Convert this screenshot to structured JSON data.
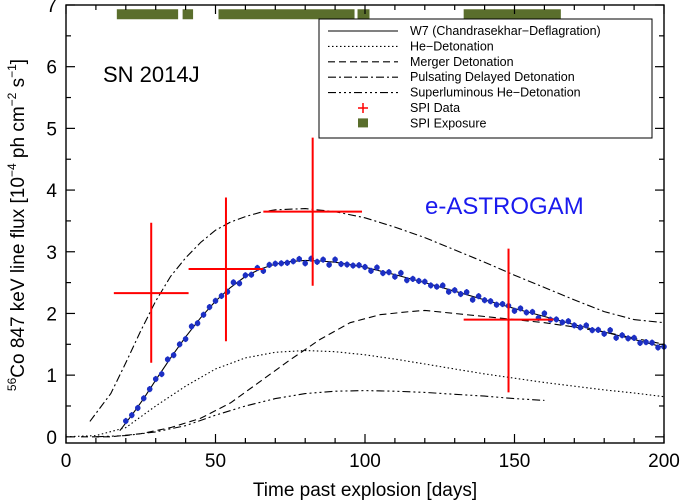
{
  "chart_data": {
    "type": "line",
    "title": "SN 2014J",
    "annotation": "e-ASTROGAM",
    "xlabel": "Time past explosion [days]",
    "ylabel": {
      "prefix": "56",
      "main": "Co  847 keV line flux [10",
      "exp1": "−4",
      "mid": " ph cm",
      "exp2": "−2",
      "mid2": " s",
      "exp3": "−1",
      "end": "]"
    },
    "xlim": [
      0,
      200
    ],
    "ylim": [
      -0.1,
      7
    ],
    "xticks": [
      0,
      50,
      100,
      150,
      200
    ],
    "yticks": [
      0,
      1,
      2,
      3,
      4,
      5,
      6,
      7
    ],
    "grid": false,
    "legend_location": "top-right",
    "legend": [
      {
        "label": "W7 (Chandrasekhar−Deflagration)",
        "style": "solid"
      },
      {
        "label": "He−Detonation",
        "style": "dotted"
      },
      {
        "label": "Merger Detonation",
        "style": "dashed"
      },
      {
        "label": "Pulsating Delayed Detonation",
        "style": "dashdot"
      },
      {
        "label": "Superluminous He−Detonation",
        "style": "dashdotdotdot"
      },
      {
        "label": "SPI Data",
        "style": "plus"
      },
      {
        "label": "SPI Exposure",
        "style": "square"
      }
    ],
    "series": [
      {
        "name": "W7 (Chandrasekhar−Deflagration)",
        "style": "solid",
        "x": [
          18,
          22,
          26,
          30,
          35,
          40,
          45,
          50,
          55,
          60,
          65,
          70,
          75,
          80,
          85,
          90,
          100,
          110,
          120,
          130,
          140,
          150,
          160,
          170,
          180,
          190,
          200
        ],
        "y": [
          0.1,
          0.35,
          0.62,
          0.92,
          1.28,
          1.62,
          1.93,
          2.2,
          2.42,
          2.6,
          2.72,
          2.8,
          2.84,
          2.86,
          2.85,
          2.83,
          2.75,
          2.63,
          2.5,
          2.36,
          2.22,
          2.08,
          1.95,
          1.82,
          1.7,
          1.58,
          1.45
        ]
      },
      {
        "name": "He−Detonation",
        "style": "dotted",
        "x": [
          0,
          10,
          20,
          30,
          40,
          50,
          60,
          70,
          80,
          90,
          100,
          110,
          120,
          130,
          140,
          150,
          160,
          170,
          180,
          190,
          200
        ],
        "y": [
          0,
          0.02,
          0.15,
          0.5,
          0.82,
          1.1,
          1.28,
          1.37,
          1.4,
          1.38,
          1.33,
          1.26,
          1.18,
          1.1,
          1.02,
          0.95,
          0.88,
          0.82,
          0.76,
          0.71,
          0.65
        ]
      },
      {
        "name": "Merger Detonation",
        "style": "dashed",
        "x": [
          5,
          15,
          25,
          35,
          45,
          55,
          65,
          75,
          85,
          95,
          105,
          115,
          120,
          130,
          140,
          150,
          160,
          170,
          180,
          190,
          200
        ],
        "y": [
          0,
          0.0,
          0.05,
          0.15,
          0.3,
          0.55,
          0.9,
          1.25,
          1.58,
          1.85,
          1.98,
          2.03,
          2.05,
          2.0,
          1.95,
          1.9,
          1.85,
          1.78,
          1.7,
          1.6,
          1.5
        ]
      },
      {
        "name": "Pulsating Delayed Detonation",
        "style": "dashdot",
        "x": [
          8,
          15,
          20,
          25,
          30,
          35,
          40,
          45,
          50,
          55,
          60,
          65,
          70,
          80,
          90,
          100,
          110,
          120,
          130,
          140,
          150,
          160,
          170,
          180,
          190,
          200
        ],
        "y": [
          0.25,
          0.7,
          1.2,
          1.72,
          2.2,
          2.6,
          2.9,
          3.15,
          3.35,
          3.48,
          3.57,
          3.64,
          3.68,
          3.7,
          3.65,
          3.55,
          3.4,
          3.23,
          3.03,
          2.83,
          2.62,
          2.42,
          2.22,
          2.03,
          1.9,
          1.85
        ]
      },
      {
        "name": "Superluminous He−Detonation",
        "style": "dashdotdotdot",
        "x": [
          10,
          20,
          30,
          40,
          50,
          60,
          70,
          80,
          90,
          100,
          110,
          120,
          130,
          140,
          150,
          160
        ],
        "y": [
          0,
          0.02,
          0.08,
          0.18,
          0.35,
          0.5,
          0.62,
          0.7,
          0.74,
          0.75,
          0.74,
          0.72,
          0.69,
          0.66,
          0.62,
          0.59
        ]
      }
    ],
    "spi_data": [
      {
        "x": 28.5,
        "y": 2.33,
        "xerr": [
          16,
          41
        ],
        "yerr": [
          1.2,
          3.47
        ]
      },
      {
        "x": 53.5,
        "y": 2.72,
        "xerr": [
          41,
          66
        ],
        "yerr": [
          1.55,
          3.88
        ]
      },
      {
        "x": 82.5,
        "y": 3.65,
        "xerr": [
          66,
          99
        ],
        "yerr": [
          2.45,
          4.85
        ]
      },
      {
        "x": 148,
        "y": 1.9,
        "xerr": [
          133,
          163
        ],
        "yerr": [
          0.72,
          3.05
        ]
      }
    ],
    "spi_exposure": {
      "y": 6.85,
      "intervals": [
        [
          17,
          37.5
        ],
        [
          39,
          42.5
        ],
        [
          51,
          96.5
        ],
        [
          97.5,
          101.5
        ],
        [
          133,
          165.5
        ]
      ]
    },
    "e_astrogam_simulated_points": {
      "x_start": 20,
      "x_end": 200,
      "x_step": 2,
      "yerr": 0.05
    }
  }
}
